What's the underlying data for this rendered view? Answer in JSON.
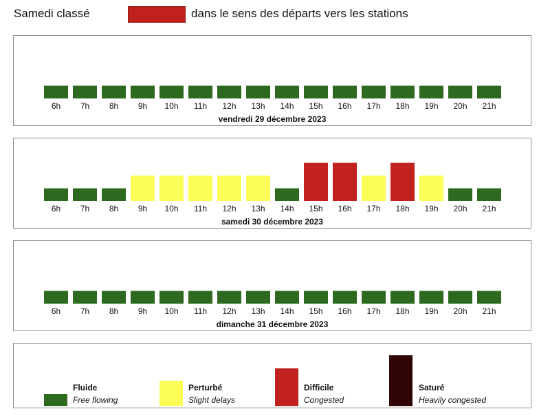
{
  "header": {
    "title": "Samedi classé",
    "swatch_color": "#c0211f",
    "caption": "dans le sens des départs vers les stations"
  },
  "chart_data": [
    {
      "type": "bar",
      "title": "vendredi 29 décembre 2023",
      "categories": [
        "6h",
        "7h",
        "8h",
        "9h",
        "10h",
        "11h",
        "12h",
        "13h",
        "14h",
        "15h",
        "16h",
        "17h",
        "18h",
        "19h",
        "20h",
        "21h"
      ],
      "values": [
        1,
        1,
        1,
        1,
        1,
        1,
        1,
        1,
        1,
        1,
        1,
        1,
        1,
        1,
        1,
        1
      ],
      "ylim": [
        0,
        4
      ]
    },
    {
      "type": "bar",
      "title": "samedi 30 décembre 2023",
      "categories": [
        "6h",
        "7h",
        "8h",
        "9h",
        "10h",
        "11h",
        "12h",
        "13h",
        "14h",
        "15h",
        "16h",
        "17h",
        "18h",
        "19h",
        "20h",
        "21h"
      ],
      "values": [
        1,
        1,
        1,
        2,
        2,
        2,
        2,
        2,
        1,
        3,
        3,
        2,
        3,
        2,
        1,
        1
      ],
      "ylim": [
        0,
        4
      ]
    },
    {
      "type": "bar",
      "title": "dimanche 31 décembre 2023",
      "categories": [
        "6h",
        "7h",
        "8h",
        "9h",
        "10h",
        "11h",
        "12h",
        "13h",
        "14h",
        "15h",
        "16h",
        "17h",
        "18h",
        "19h",
        "20h",
        "21h"
      ],
      "values": [
        1,
        1,
        1,
        1,
        1,
        1,
        1,
        1,
        1,
        1,
        1,
        1,
        1,
        1,
        1,
        1
      ],
      "ylim": [
        0,
        4
      ]
    }
  ],
  "legend": {
    "items": [
      {
        "name": "Fluide",
        "desc": "Free flowing",
        "level": 1,
        "color": "#2d6a1f"
      },
      {
        "name": "Perturbé",
        "desc": "Slight delays",
        "level": 2,
        "color": "#fdfd58"
      },
      {
        "name": "Difficile",
        "desc": "Congested",
        "level": 3,
        "color": "#c0211f"
      },
      {
        "name": "Saturé",
        "desc": "Heavily congested",
        "level": 4,
        "color": "#2e0404"
      }
    ]
  }
}
